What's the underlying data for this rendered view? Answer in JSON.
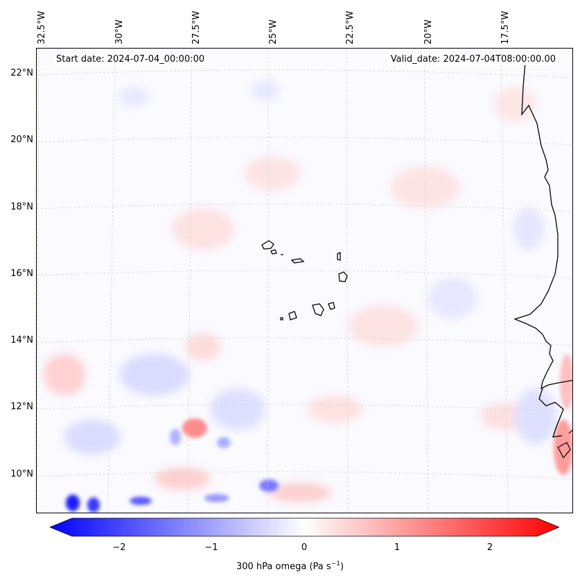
{
  "header": {
    "start_date": "Start date: 2024-07-04_00:00:00",
    "valid_date": "Valid_date: 2024-07-04T08:00:00.00"
  },
  "axes": {
    "longitude_labels": [
      "32.5°W",
      "30°W",
      "27.5°W",
      "25°W",
      "22.5°W",
      "20°W",
      "17.5°W"
    ],
    "latitude_labels": [
      "22°N",
      "20°N",
      "18°N",
      "16°N",
      "14°N",
      "12°N",
      "10°N"
    ]
  },
  "colorbar": {
    "title": "300 hPa omega (Pa s",
    "title_sup": "−1",
    "title_close": ")",
    "ticks": [
      "−2",
      "−1",
      "0",
      "1",
      "2"
    ],
    "range": [
      -2.75,
      2.75
    ],
    "negative_color": "#0000ff",
    "neutral_color": "#ffffff",
    "positive_color": "#ff0000",
    "extend": "both"
  },
  "map": {
    "field": "300 hPa omega",
    "gridlines": true,
    "features": [
      "West African coastline",
      "Cape Verde islands"
    ]
  }
}
